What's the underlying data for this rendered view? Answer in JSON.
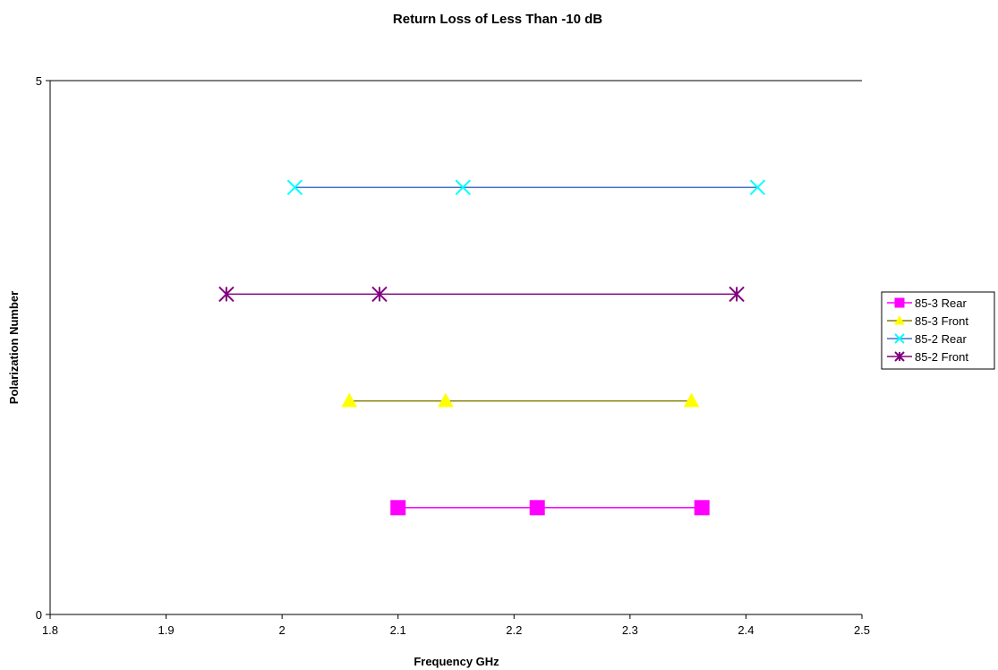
{
  "chart_data": {
    "type": "line",
    "title": "Return Loss of Less Than  -10 dB",
    "xlabel": "Frequency GHz",
    "ylabel": "Polarization Number",
    "xlim": [
      1.8,
      2.5
    ],
    "ylim": [
      0,
      5
    ],
    "x_ticks": [
      "1.8",
      "1.9",
      "2",
      "2.1",
      "2.2",
      "2.3",
      "2.4",
      "2.5"
    ],
    "y_ticks": [
      "0",
      "5"
    ],
    "grid": "horizontal line at y=5 only",
    "legend_position": "right",
    "series": [
      {
        "name": "85-3 Rear",
        "marker": "square",
        "line_color": "#ff00ff",
        "marker_color": "#ff00ff",
        "x": [
          2.1,
          2.22,
          2.362
        ],
        "y": [
          1,
          1,
          1
        ]
      },
      {
        "name": "85-3 Front",
        "marker": "triangle",
        "line_color": "#808000",
        "marker_color": "#ffff00",
        "x": [
          2.058,
          2.141,
          2.353
        ],
        "y": [
          2,
          2,
          2
        ]
      },
      {
        "name": "85-2 Rear",
        "marker": "x",
        "line_color": "#4472c4",
        "marker_color": "#00ffff",
        "x": [
          2.011,
          2.156,
          2.41
        ],
        "y": [
          4,
          4,
          4
        ]
      },
      {
        "name": "85-2 Front",
        "marker": "asterisk",
        "line_color": "#800080",
        "marker_color": "#800080",
        "x": [
          1.952,
          2.084,
          2.392
        ],
        "y": [
          3,
          3,
          3
        ]
      }
    ]
  }
}
